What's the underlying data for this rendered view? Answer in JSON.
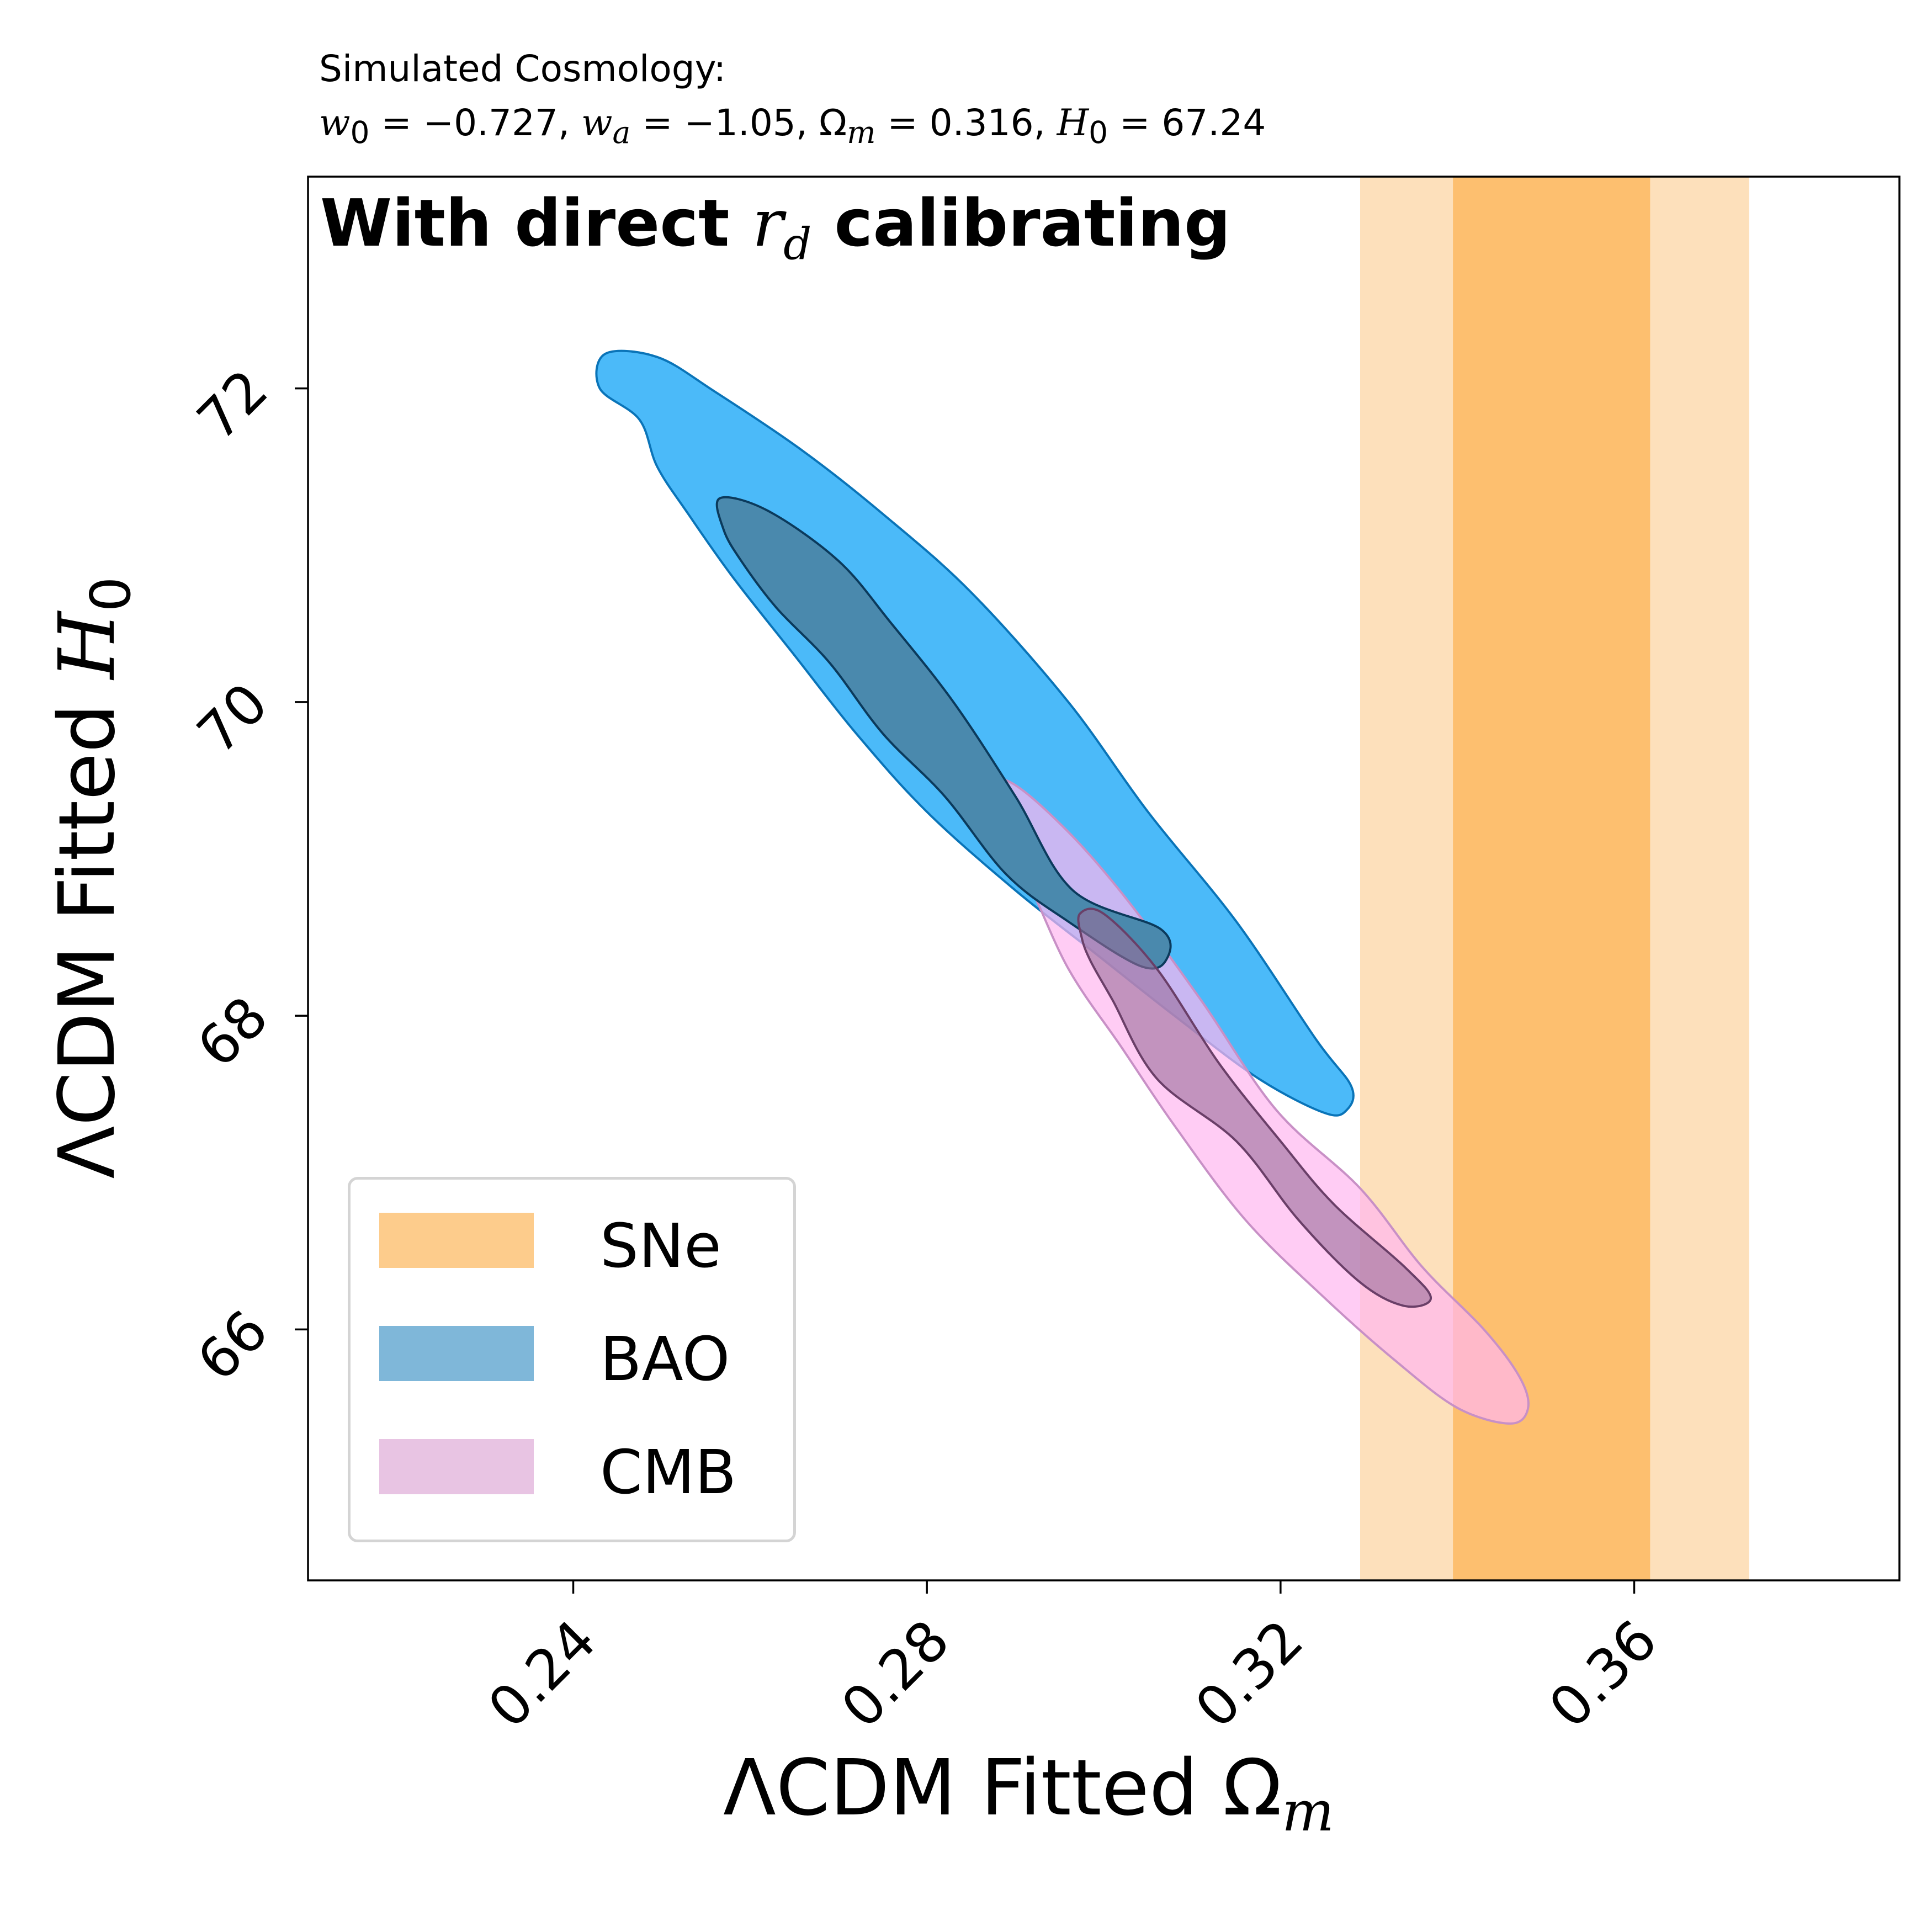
{
  "title": {
    "line1": "Simulated Cosmology:",
    "w0_value": "−0.727",
    "wa_value": "−1.05",
    "om_value": "0.316",
    "h0_value": "67.24"
  },
  "panel_text": {
    "prefix": "With direct ",
    "suffix": " calibrating"
  },
  "chart_data": {
    "type": "contour",
    "xlabel": "ΛCDM Fitted Ωm",
    "ylabel": "ΛCDM Fitted H0",
    "xlim": [
      0.21,
      0.39
    ],
    "ylim": [
      64.4,
      73.35
    ],
    "x_ticks": [
      "0.24",
      "0.28",
      "0.32",
      "0.36"
    ],
    "y_ticks": [
      "66",
      "68",
      "70",
      "72"
    ],
    "legend": {
      "position": "lower-left",
      "entries": [
        "SNe",
        "BAO",
        "CMB"
      ]
    },
    "series": [
      {
        "name": "SNe",
        "kind": "vertical-band",
        "color": "#fdbf6f",
        "inner_color": "#fdbf6f",
        "outer_color": "#fde0bb",
        "inner": [
          0.3395,
          0.3618
        ],
        "outer": [
          0.329,
          0.373
        ]
      },
      {
        "name": "BAO",
        "kind": "contours",
        "outer_fill": "#4bbaf9",
        "outer_edge": "#0a74b8",
        "inner_fill": "#4a89ad",
        "inner_edge": "#0b3a5c",
        "outer": [
          [
            0.2436,
            72.22
          ],
          [
            0.2495,
            72.2
          ],
          [
            0.256,
            71.98
          ],
          [
            0.266,
            71.6
          ],
          [
            0.275,
            71.2
          ],
          [
            0.285,
            70.7
          ],
          [
            0.296,
            70.0
          ],
          [
            0.305,
            69.3
          ],
          [
            0.315,
            68.6
          ],
          [
            0.324,
            67.85
          ],
          [
            0.328,
            67.55
          ],
          [
            0.3275,
            67.4
          ],
          [
            0.325,
            67.38
          ],
          [
            0.3175,
            67.6
          ],
          [
            0.308,
            68.0
          ],
          [
            0.299,
            68.4
          ],
          [
            0.29,
            68.8
          ],
          [
            0.28,
            69.3
          ],
          [
            0.272,
            69.8
          ],
          [
            0.265,
            70.3
          ],
          [
            0.258,
            70.8
          ],
          [
            0.253,
            71.2
          ],
          [
            0.2495,
            71.5
          ],
          [
            0.2475,
            71.8
          ],
          [
            0.243,
            72.0
          ]
        ],
        "inner": [
          [
            0.2566,
            71.3
          ],
          [
            0.262,
            71.22
          ],
          [
            0.27,
            70.9
          ],
          [
            0.276,
            70.5
          ],
          [
            0.283,
            70.0
          ],
          [
            0.29,
            69.4
          ],
          [
            0.2965,
            68.8
          ],
          [
            0.3065,
            68.55
          ],
          [
            0.307,
            68.35
          ],
          [
            0.304,
            68.32
          ],
          [
            0.296,
            68.6
          ],
          [
            0.289,
            68.9
          ],
          [
            0.282,
            69.4
          ],
          [
            0.275,
            69.8
          ],
          [
            0.269,
            70.25
          ],
          [
            0.263,
            70.6
          ],
          [
            0.259,
            70.9
          ],
          [
            0.257,
            71.1
          ]
        ]
      },
      {
        "name": "CMB",
        "kind": "contours",
        "outer_fill": "#ffb6ef",
        "outer_fill_opacity": 0.7,
        "outer_edge": "#c890c6",
        "inner_fill": "#996c9a",
        "inner_fill_opacity": 0.6,
        "inner_edge": "#6a3f68",
        "outer": [
          [
            0.286,
            69.4
          ],
          [
            0.289,
            69.5
          ],
          [
            0.2955,
            69.2
          ],
          [
            0.3025,
            68.75
          ],
          [
            0.311,
            68.1
          ],
          [
            0.3195,
            67.4
          ],
          [
            0.329,
            66.9
          ],
          [
            0.336,
            66.4
          ],
          [
            0.343,
            66.0
          ],
          [
            0.347,
            65.7
          ],
          [
            0.348,
            65.5
          ],
          [
            0.346,
            65.4
          ],
          [
            0.34,
            65.5
          ],
          [
            0.333,
            65.8
          ],
          [
            0.325,
            66.2
          ],
          [
            0.316,
            66.7
          ],
          [
            0.308,
            67.3
          ],
          [
            0.302,
            67.8
          ],
          [
            0.296,
            68.3
          ],
          [
            0.291,
            68.9
          ],
          [
            0.287,
            69.2
          ]
        ],
        "inner": [
          [
            0.2973,
            68.65
          ],
          [
            0.3,
            68.65
          ],
          [
            0.306,
            68.3
          ],
          [
            0.313,
            67.7
          ],
          [
            0.32,
            67.2
          ],
          [
            0.326,
            66.8
          ],
          [
            0.334,
            66.4
          ],
          [
            0.337,
            66.2
          ],
          [
            0.334,
            66.15
          ],
          [
            0.329,
            66.3
          ],
          [
            0.322,
            66.7
          ],
          [
            0.315,
            67.2
          ],
          [
            0.306,
            67.6
          ],
          [
            0.301,
            68.1
          ],
          [
            0.2985,
            68.35
          ],
          [
            0.2975,
            68.5
          ]
        ]
      }
    ]
  }
}
